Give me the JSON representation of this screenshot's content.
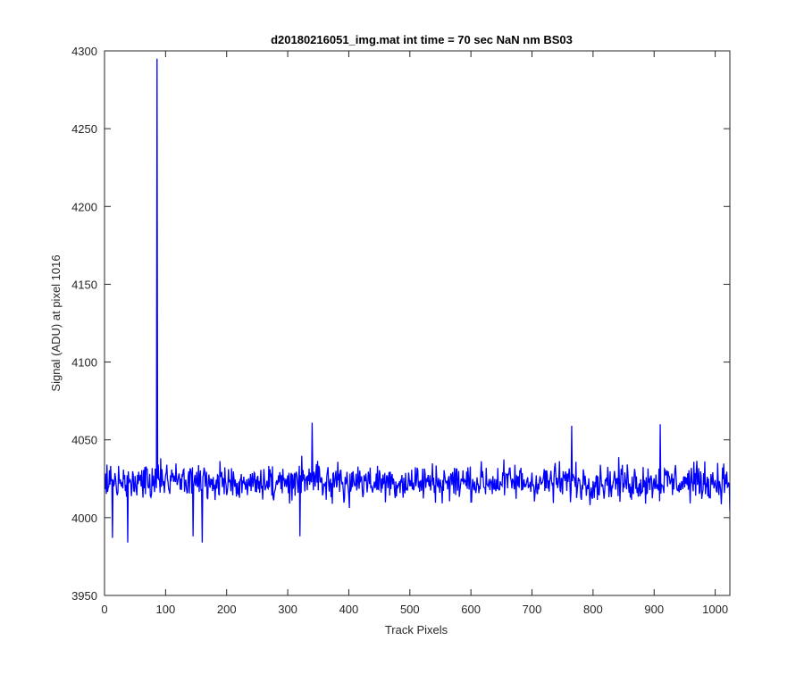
{
  "figure": {
    "title": "d20180216051_img.mat int time = 70 sec  NaN nm BS03",
    "xlabel": "Track Pixels",
    "ylabel": "Signal (ADU) at pixel 1016"
  },
  "chart_data": {
    "type": "line",
    "title": "d20180216051_img.mat int time = 70 sec  NaN nm BS03",
    "xlabel": "Track Pixels",
    "ylabel": "Signal (ADU) at pixel 1016",
    "xlim": [
      0,
      1024
    ],
    "ylim": [
      3950,
      4300
    ],
    "xticks": [
      0,
      100,
      200,
      300,
      400,
      500,
      600,
      700,
      800,
      900,
      1000
    ],
    "yticks": [
      3950,
      4000,
      4050,
      4100,
      4150,
      4200,
      4250,
      4300
    ],
    "grid": false,
    "line_color": "#0000ff",
    "series": [
      {
        "x_start": 1,
        "x_step": 1,
        "baseline": 4023,
        "noise_amplitude": 11,
        "spike": {
          "x": 86,
          "y": 4295
        },
        "notable_points": [
          {
            "x": 13,
            "y": 3987
          },
          {
            "x": 38,
            "y": 3984
          },
          {
            "x": 145,
            "y": 3988
          },
          {
            "x": 160,
            "y": 3984
          },
          {
            "x": 320,
            "y": 3988
          },
          {
            "x": 340,
            "y": 4061
          },
          {
            "x": 765,
            "y": 4059
          },
          {
            "x": 910,
            "y": 4060
          },
          {
            "x": 1024,
            "y": 4004
          }
        ]
      }
    ]
  }
}
